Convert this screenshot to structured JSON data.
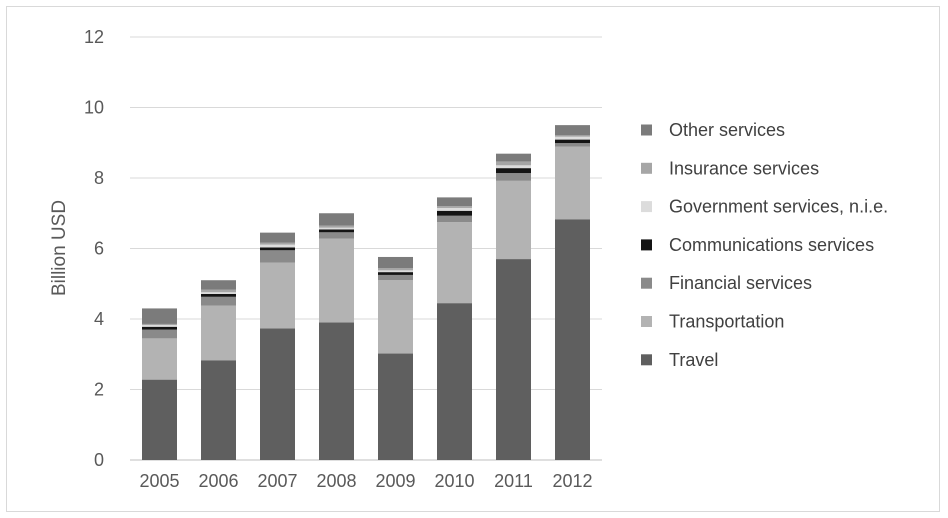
{
  "chart_data": {
    "type": "bar",
    "stacked": true,
    "categories": [
      "2005",
      "2006",
      "2007",
      "2008",
      "2009",
      "2010",
      "2011",
      "2012"
    ],
    "ylabel": "Billion USD",
    "xlabel": "",
    "ylim": [
      0,
      12
    ],
    "yticks": [
      0,
      2,
      4,
      6,
      8,
      10,
      12
    ],
    "grid": true,
    "legend_position": "right",
    "series": [
      {
        "name": "Travel",
        "color": "#5f5f5f",
        "values": [
          2.28,
          2.83,
          3.73,
          3.9,
          3.02,
          4.45,
          5.7,
          6.83
        ]
      },
      {
        "name": "Transportation",
        "color": "#b3b3b3",
        "values": [
          1.17,
          1.55,
          1.87,
          2.38,
          2.08,
          2.3,
          2.22,
          2.06
        ]
      },
      {
        "name": "Financial services",
        "color": "#8a8a8a",
        "values": [
          0.25,
          0.25,
          0.35,
          0.18,
          0.15,
          0.18,
          0.22,
          0.1
        ]
      },
      {
        "name": "Communications services",
        "color": "#141414",
        "values": [
          0.08,
          0.08,
          0.08,
          0.08,
          0.08,
          0.14,
          0.14,
          0.1
        ]
      },
      {
        "name": "Government services, n.i.e.",
        "color": "#dcdcdc",
        "values": [
          0.05,
          0.05,
          0.08,
          0.05,
          0.05,
          0.08,
          0.08,
          0.08
        ]
      },
      {
        "name": "Insurance services",
        "color": "#a6a6a6",
        "values": [
          0.03,
          0.07,
          0.06,
          0.06,
          0.06,
          0.05,
          0.11,
          0.04
        ]
      },
      {
        "name": "Other services",
        "color": "#7b7b7b",
        "values": [
          0.44,
          0.27,
          0.28,
          0.35,
          0.32,
          0.25,
          0.22,
          0.29
        ]
      }
    ]
  }
}
